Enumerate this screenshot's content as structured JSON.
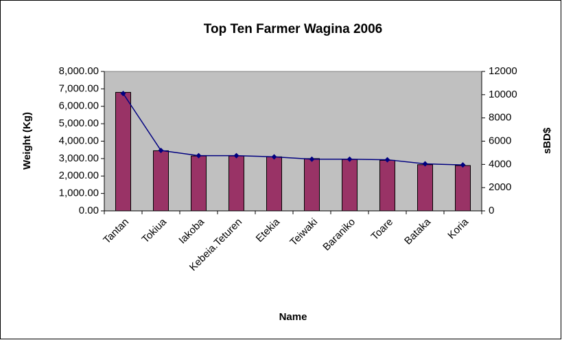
{
  "chart_data": {
    "type": "bar_line",
    "title": "Top Ten Farmer Wagina 2006",
    "x_label": "Name",
    "y_label": "Weight (Kg)",
    "y2_label": "sBD$",
    "categories": [
      "Tantan",
      "Tokiua",
      "Iakoba",
      "Kebeia.Teturen",
      "Etekia",
      "Teiwaki",
      "Baraniko",
      "Toare",
      "Bataka",
      "Koria"
    ],
    "series": [
      {
        "type": "bar",
        "color": "#993366",
        "values": [
          6800,
          3450,
          3150,
          3150,
          3100,
          3000,
          2950,
          2900,
          2650,
          2600
        ]
      },
      {
        "type": "line",
        "axis": "y2",
        "color": "#000080",
        "values": [
          10100,
          5200,
          4750,
          4750,
          4650,
          4450,
          4450,
          4400,
          4050,
          3950
        ]
      }
    ],
    "ylim": [
      0,
      8000
    ],
    "yticks": [
      {
        "value": 0,
        "label": "0.00"
      },
      {
        "value": 1000,
        "label": "1,000.00"
      },
      {
        "value": 2000,
        "label": "2,000.00"
      },
      {
        "value": 3000,
        "label": "3,000.00"
      },
      {
        "value": 4000,
        "label": "4,000.00"
      },
      {
        "value": 5000,
        "label": "5,000.00"
      },
      {
        "value": 6000,
        "label": "6,000.00"
      },
      {
        "value": 7000,
        "label": "7,000.00"
      },
      {
        "value": 8000,
        "label": "8,000.00"
      }
    ],
    "y2lim": [
      0,
      12000
    ],
    "y2ticks": [
      0,
      2000,
      4000,
      6000,
      8000,
      10000,
      12000
    ],
    "plot_background": "#c0c0c0"
  }
}
